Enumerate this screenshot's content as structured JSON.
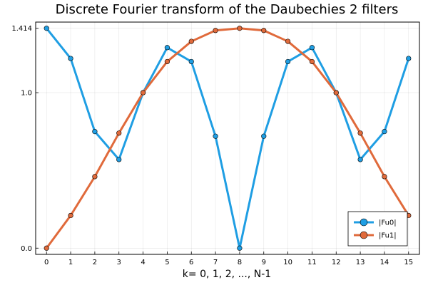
{
  "chart_data": {
    "type": "line",
    "title": "Discrete Fourier transform of the Daubechies 2 filters",
    "xlabel": "k= 0, 1, 2, ..., N-1",
    "ylabel": "",
    "xlim": [
      -0.45,
      15.45
    ],
    "ylim": [
      -0.04,
      1.454
    ],
    "x_ticks": [
      0,
      1,
      2,
      3,
      4,
      5,
      6,
      7,
      8,
      9,
      10,
      11,
      12,
      13,
      14,
      15
    ],
    "x_tick_labels": [
      "0",
      "1",
      "2",
      "3",
      "4",
      "5",
      "6",
      "7",
      "8",
      "9",
      "10",
      "11",
      "12",
      "13",
      "14",
      "15"
    ],
    "y_ticks": [
      0.0,
      1.0,
      1.414
    ],
    "y_tick_labels": [
      "0.0",
      "1.0",
      "1.414"
    ],
    "grid": true,
    "legend_position": "bottom-right",
    "x": [
      0,
      1,
      2,
      3,
      4,
      5,
      6,
      7,
      8,
      9,
      10,
      11,
      12,
      13,
      14,
      15
    ],
    "series": [
      {
        "name": "|Fu0|",
        "color": "#1f9ee3",
        "values": [
          1.414,
          1.22,
          0.75,
          0.57,
          1.0,
          1.29,
          1.2,
          0.72,
          0.0,
          0.72,
          1.2,
          1.29,
          1.0,
          0.57,
          0.75,
          1.22
        ]
      },
      {
        "name": "|Fu1|",
        "color": "#e06a3b",
        "values": [
          0.0,
          0.21,
          0.46,
          0.74,
          1.0,
          1.2,
          1.33,
          1.4,
          1.414,
          1.4,
          1.33,
          1.2,
          1.0,
          0.74,
          0.46,
          0.21
        ]
      }
    ]
  }
}
